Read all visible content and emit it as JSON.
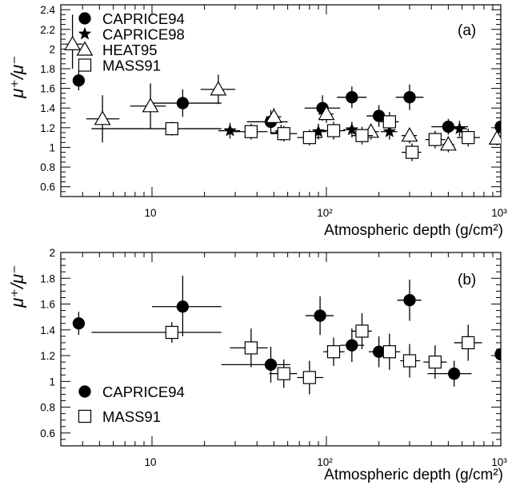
{
  "chart_data": [
    {
      "type": "scatter",
      "panel_label": "(a)",
      "xlabel": "Atmospheric depth (g/cm²)",
      "ylabel": "μ⁺/μ⁻",
      "x_scale": "log",
      "xlim": [
        3,
        1000
      ],
      "ylim": [
        0.5,
        2.45
      ],
      "x_ticks": [
        10,
        100,
        1000
      ],
      "x_tick_labels": [
        "10",
        "10²",
        "10³"
      ],
      "y_ticks": [
        0.6,
        0.8,
        1,
        1.2,
        1.4,
        1.6,
        1.8,
        2,
        2.2,
        2.4
      ],
      "y_tick_labels": [
        "0.6",
        "0.8",
        "1",
        "1.2",
        "1.4",
        "1.6",
        "1.8",
        "2",
        "2.2",
        "2.4"
      ],
      "legend_position": "top-left",
      "series": [
        {
          "name": "CAPRICE94",
          "marker": "filled-circle",
          "points": [
            {
              "x": 3.8,
              "y": 1.68,
              "xlo": 3.8,
              "xhi": 3.8,
              "ylo": 1.58,
              "yhi": 1.78
            },
            {
              "x": 15,
              "y": 1.45,
              "xlo": 10,
              "xhi": 25,
              "ylo": 1.31,
              "yhi": 1.59
            },
            {
              "x": 48,
              "y": 1.26,
              "xlo": 35,
              "xhi": 60,
              "ylo": 1.14,
              "yhi": 1.38
            },
            {
              "x": 95,
              "y": 1.4,
              "xlo": 75,
              "xhi": 120,
              "ylo": 1.27,
              "yhi": 1.53
            },
            {
              "x": 140,
              "y": 1.51,
              "xlo": 115,
              "xhi": 170,
              "ylo": 1.4,
              "yhi": 1.62
            },
            {
              "x": 200,
              "y": 1.32,
              "xlo": 170,
              "xhi": 235,
              "ylo": 1.21,
              "yhi": 1.43
            },
            {
              "x": 300,
              "y": 1.51,
              "xlo": 250,
              "xhi": 360,
              "ylo": 1.38,
              "yhi": 1.64
            },
            {
              "x": 500,
              "y": 1.21,
              "xlo": 400,
              "xhi": 650,
              "ylo": 1.13,
              "yhi": 1.29
            },
            {
              "x": 1000,
              "y": 1.21,
              "xlo": 1000,
              "xhi": 1000,
              "ylo": 1.21,
              "yhi": 1.21
            }
          ]
        },
        {
          "name": "CAPRICE98",
          "marker": "star",
          "points": [
            {
              "x": 28,
              "y": 1.17,
              "xlo": 24,
              "xhi": 32,
              "ylo": 1.09,
              "yhi": 1.25
            },
            {
              "x": 55,
              "y": 1.15,
              "xlo": 48,
              "xhi": 62,
              "ylo": 1.07,
              "yhi": 1.23
            },
            {
              "x": 90,
              "y": 1.16,
              "xlo": 80,
              "xhi": 100,
              "ylo": 1.08,
              "yhi": 1.24
            },
            {
              "x": 140,
              "y": 1.18,
              "xlo": 125,
              "xhi": 155,
              "ylo": 1.1,
              "yhi": 1.26
            },
            {
              "x": 230,
              "y": 1.16,
              "xlo": 205,
              "xhi": 255,
              "ylo": 1.08,
              "yhi": 1.24
            },
            {
              "x": 580,
              "y": 1.19,
              "xlo": 520,
              "xhi": 640,
              "ylo": 1.11,
              "yhi": 1.27
            }
          ]
        },
        {
          "name": "HEAT95",
          "marker": "open-triangle",
          "points": [
            {
              "x": 3.5,
              "y": 2.05,
              "xlo": 3.2,
              "xhi": 4.0,
              "ylo": 1.8,
              "yhi": 2.35
            },
            {
              "x": 5.2,
              "y": 1.29,
              "xlo": 4.2,
              "xhi": 6.5,
              "ylo": 1.05,
              "yhi": 1.53
            },
            {
              "x": 9.8,
              "y": 1.42,
              "xlo": 7.5,
              "xhi": 12,
              "ylo": 1.19,
              "yhi": 1.65
            },
            {
              "x": 24,
              "y": 1.59,
              "xlo": 19,
              "xhi": 30,
              "ylo": 1.44,
              "yhi": 1.74
            },
            {
              "x": 50,
              "y": 1.31,
              "xlo": 45,
              "xhi": 55,
              "ylo": 1.22,
              "yhi": 1.4
            },
            {
              "x": 100,
              "y": 1.34,
              "xlo": 90,
              "xhi": 110,
              "ylo": 1.25,
              "yhi": 1.43
            },
            {
              "x": 180,
              "y": 1.16,
              "xlo": 160,
              "xhi": 200,
              "ylo": 1.08,
              "yhi": 1.24
            },
            {
              "x": 300,
              "y": 1.12,
              "xlo": 270,
              "xhi": 330,
              "ylo": 1.04,
              "yhi": 1.2
            },
            {
              "x": 500,
              "y": 1.03,
              "xlo": 460,
              "xhi": 540,
              "ylo": 0.95,
              "yhi": 1.11
            },
            {
              "x": 950,
              "y": 1.09,
              "xlo": 900,
              "xhi": 1000,
              "ylo": 1.02,
              "yhi": 1.16
            }
          ]
        },
        {
          "name": "MASS91",
          "marker": "open-square",
          "points": [
            {
              "x": 13,
              "y": 1.19,
              "xlo": 4.5,
              "xhi": 25,
              "ylo": 1.12,
              "yhi": 1.26
            },
            {
              "x": 37,
              "y": 1.16,
              "xlo": 28,
              "xhi": 46,
              "ylo": 1.08,
              "yhi": 1.24
            },
            {
              "x": 57,
              "y": 1.14,
              "xlo": 48,
              "xhi": 68,
              "ylo": 1.06,
              "yhi": 1.22
            },
            {
              "x": 80,
              "y": 1.1,
              "xlo": 68,
              "xhi": 95,
              "ylo": 1.02,
              "yhi": 1.18
            },
            {
              "x": 110,
              "y": 1.17,
              "xlo": 96,
              "xhi": 128,
              "ylo": 1.08,
              "yhi": 1.26
            },
            {
              "x": 160,
              "y": 1.12,
              "xlo": 140,
              "xhi": 185,
              "ylo": 1.03,
              "yhi": 1.21
            },
            {
              "x": 230,
              "y": 1.26,
              "xlo": 205,
              "xhi": 260,
              "ylo": 1.16,
              "yhi": 1.36
            },
            {
              "x": 310,
              "y": 0.95,
              "xlo": 270,
              "xhi": 350,
              "ylo": 0.86,
              "yhi": 1.04
            },
            {
              "x": 420,
              "y": 1.08,
              "xlo": 370,
              "xhi": 480,
              "ylo": 0.99,
              "yhi": 1.17
            },
            {
              "x": 650,
              "y": 1.1,
              "xlo": 560,
              "xhi": 760,
              "ylo": 1.01,
              "yhi": 1.19
            }
          ]
        }
      ]
    },
    {
      "type": "scatter",
      "panel_label": "(b)",
      "xlabel": "Atmospheric depth (g/cm²)",
      "ylabel": "μ⁺/μ⁻",
      "x_scale": "log",
      "xlim": [
        3,
        1000
      ],
      "ylim": [
        0.5,
        2.0
      ],
      "x_ticks": [
        10,
        100,
        1000
      ],
      "x_tick_labels": [
        "10",
        "10²",
        "10³"
      ],
      "y_ticks": [
        0.6,
        0.8,
        1,
        1.2,
        1.4,
        1.6,
        1.8,
        2
      ],
      "y_tick_labels": [
        "0.6",
        "0.8",
        "1",
        "1.2",
        "1.4",
        "1.6",
        "1.8",
        "2"
      ],
      "legend_position": "bottom-left",
      "series": [
        {
          "name": "CAPRICE94",
          "marker": "filled-circle",
          "points": [
            {
              "x": 3.8,
              "y": 1.45,
              "xlo": 3.8,
              "xhi": 3.8,
              "ylo": 1.36,
              "yhi": 1.54
            },
            {
              "x": 15,
              "y": 1.58,
              "xlo": 10,
              "xhi": 25,
              "ylo": 1.35,
              "yhi": 1.82
            },
            {
              "x": 48,
              "y": 1.13,
              "xlo": 25,
              "xhi": 62,
              "ylo": 0.99,
              "yhi": 1.27
            },
            {
              "x": 92,
              "y": 1.51,
              "xlo": 76,
              "xhi": 110,
              "ylo": 1.36,
              "yhi": 1.66
            },
            {
              "x": 140,
              "y": 1.28,
              "xlo": 120,
              "xhi": 165,
              "ylo": 1.15,
              "yhi": 1.41
            },
            {
              "x": 200,
              "y": 1.23,
              "xlo": 175,
              "xhi": 235,
              "ylo": 1.11,
              "yhi": 1.35
            },
            {
              "x": 300,
              "y": 1.63,
              "xlo": 255,
              "xhi": 350,
              "ylo": 1.47,
              "yhi": 1.79
            },
            {
              "x": 540,
              "y": 1.06,
              "xlo": 380,
              "xhi": 680,
              "ylo": 0.96,
              "yhi": 1.16
            },
            {
              "x": 1000,
              "y": 1.21,
              "xlo": 1000,
              "xhi": 1000,
              "ylo": 1.21,
              "yhi": 1.21
            }
          ]
        },
        {
          "name": "MASS91",
          "marker": "open-square",
          "points": [
            {
              "x": 13,
              "y": 1.38,
              "xlo": 4.5,
              "xhi": 25,
              "ylo": 1.3,
              "yhi": 1.46
            },
            {
              "x": 37,
              "y": 1.26,
              "xlo": 28,
              "xhi": 46,
              "ylo": 1.11,
              "yhi": 1.41
            },
            {
              "x": 57,
              "y": 1.06,
              "xlo": 47,
              "xhi": 68,
              "ylo": 0.95,
              "yhi": 1.17
            },
            {
              "x": 80,
              "y": 1.03,
              "xlo": 68,
              "xhi": 96,
              "ylo": 0.9,
              "yhi": 1.16
            },
            {
              "x": 110,
              "y": 1.23,
              "xlo": 96,
              "xhi": 127,
              "ylo": 1.12,
              "yhi": 1.34
            },
            {
              "x": 160,
              "y": 1.39,
              "xlo": 140,
              "xhi": 182,
              "ylo": 1.25,
              "yhi": 1.53
            },
            {
              "x": 230,
              "y": 1.23,
              "xlo": 203,
              "xhi": 265,
              "ylo": 1.09,
              "yhi": 1.37
            },
            {
              "x": 300,
              "y": 1.16,
              "xlo": 265,
              "xhi": 345,
              "ylo": 1.03,
              "yhi": 1.29
            },
            {
              "x": 420,
              "y": 1.15,
              "xlo": 360,
              "xhi": 490,
              "ylo": 1.02,
              "yhi": 1.28
            },
            {
              "x": 650,
              "y": 1.3,
              "xlo": 540,
              "xhi": 780,
              "ylo": 1.16,
              "yhi": 1.44
            }
          ]
        }
      ]
    }
  ]
}
